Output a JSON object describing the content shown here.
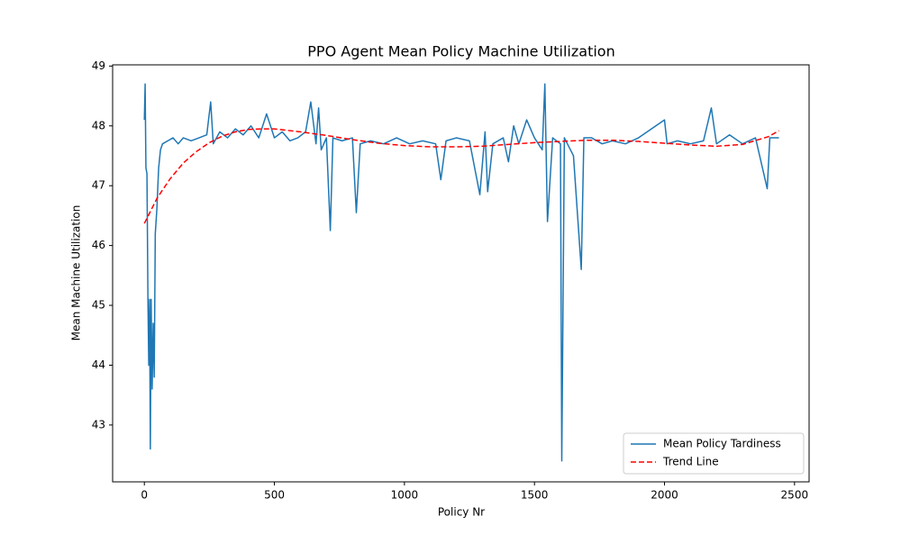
{
  "chart_data": {
    "type": "line",
    "title": "PPO Agent Mean Policy Machine Utilization",
    "xlabel": "Policy Nr",
    "ylabel": "Mean Machine Utilization",
    "xlim": [
      -122,
      2556
    ],
    "ylim": [
      42.05,
      49.02
    ],
    "xticks": [
      0,
      500,
      1000,
      1500,
      2000,
      2500
    ],
    "yticks": [
      43,
      44,
      45,
      46,
      47,
      48,
      49
    ],
    "legend": "lower right",
    "series": [
      {
        "name": "Mean Policy Tardiness",
        "color": "#1f77b4",
        "style": "solid",
        "x": [
          0,
          3,
          6,
          10,
          14,
          17,
          20,
          23,
          26,
          30,
          34,
          38,
          42,
          48,
          55,
          62,
          70,
          90,
          110,
          130,
          150,
          180,
          210,
          240,
          255,
          265,
          290,
          320,
          350,
          380,
          410,
          440,
          470,
          500,
          530,
          560,
          590,
          620,
          640,
          660,
          670,
          680,
          700,
          715,
          725,
          760,
          800,
          815,
          830,
          870,
          920,
          970,
          1020,
          1070,
          1120,
          1140,
          1160,
          1200,
          1250,
          1290,
          1310,
          1320,
          1340,
          1380,
          1400,
          1420,
          1440,
          1470,
          1500,
          1530,
          1540,
          1550,
          1570,
          1600,
          1605,
          1615,
          1650,
          1680,
          1690,
          1720,
          1760,
          1800,
          1850,
          1900,
          2000,
          2010,
          2050,
          2100,
          2150,
          2180,
          2200,
          2250,
          2300,
          2350,
          2395,
          2405,
          2440
        ],
        "values": [
          48.1,
          48.7,
          47.3,
          47.2,
          45.0,
          44.0,
          45.1,
          42.6,
          45.1,
          43.6,
          44.7,
          43.8,
          46.2,
          46.6,
          47.3,
          47.6,
          47.7,
          47.75,
          47.8,
          47.7,
          47.8,
          47.75,
          47.8,
          47.85,
          48.4,
          47.7,
          47.9,
          47.8,
          47.95,
          47.85,
          48.0,
          47.8,
          48.2,
          47.8,
          47.9,
          47.75,
          47.8,
          47.9,
          48.4,
          47.7,
          48.3,
          47.6,
          47.8,
          46.25,
          47.8,
          47.75,
          47.8,
          46.55,
          47.7,
          47.75,
          47.7,
          47.8,
          47.7,
          47.75,
          47.7,
          47.1,
          47.75,
          47.8,
          47.75,
          46.85,
          47.9,
          46.9,
          47.7,
          47.8,
          47.4,
          48.0,
          47.7,
          48.1,
          47.8,
          47.6,
          48.7,
          46.4,
          47.8,
          47.7,
          42.4,
          47.8,
          47.5,
          45.6,
          47.8,
          47.8,
          47.7,
          47.75,
          47.7,
          47.8,
          48.1,
          47.7,
          47.75,
          47.7,
          47.75,
          48.3,
          47.7,
          47.85,
          47.7,
          47.8,
          46.95,
          47.8,
          47.8
        ]
      },
      {
        "name": "Trend Line",
        "color": "#ff0000",
        "style": "dashed",
        "x": [
          0,
          50,
          100,
          150,
          200,
          250,
          300,
          350,
          400,
          450,
          500,
          600,
          700,
          800,
          900,
          1000,
          1100,
          1200,
          1300,
          1400,
          1500,
          1600,
          1700,
          1800,
          1900,
          2000,
          2100,
          2200,
          2300,
          2400,
          2440
        ],
        "values": [
          46.37,
          46.8,
          47.12,
          47.38,
          47.57,
          47.72,
          47.83,
          47.9,
          47.94,
          47.95,
          47.95,
          47.9,
          47.84,
          47.77,
          47.71,
          47.67,
          47.65,
          47.65,
          47.66,
          47.69,
          47.72,
          47.74,
          47.76,
          47.76,
          47.74,
          47.71,
          47.68,
          47.66,
          47.69,
          47.82,
          47.92
        ]
      }
    ]
  }
}
